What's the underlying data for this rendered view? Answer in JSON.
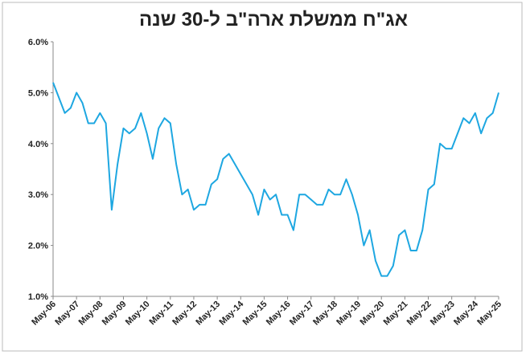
{
  "chart_data": {
    "type": "line",
    "title": "אג\"ח ממשלת ארה\"ב ל-30 שנה",
    "categories": [
      "May-06",
      null,
      null,
      null,
      "May-07",
      null,
      null,
      null,
      "May-08",
      null,
      null,
      null,
      "May-09",
      null,
      null,
      null,
      "May-10",
      null,
      null,
      null,
      "May-11",
      null,
      null,
      null,
      "May-12",
      null,
      null,
      null,
      "May-13",
      null,
      null,
      null,
      "May-14",
      null,
      null,
      null,
      "May-15",
      null,
      null,
      null,
      "May-16",
      null,
      null,
      null,
      "May-17",
      null,
      null,
      null,
      "May-18",
      null,
      null,
      null,
      "May-19",
      null,
      null,
      null,
      "May-20",
      null,
      null,
      null,
      "May-21",
      null,
      null,
      null,
      "May-22",
      null,
      null,
      null,
      "May-23",
      null,
      null,
      null,
      "May-24",
      null,
      null,
      null,
      "May-25"
    ],
    "series": [
      {
        "color": "#1ea7e1",
        "values": [
          5.2,
          4.9,
          4.6,
          4.7,
          5.0,
          4.8,
          4.4,
          4.4,
          4.6,
          4.4,
          2.7,
          3.6,
          4.3,
          4.2,
          4.3,
          4.6,
          4.2,
          3.7,
          4.3,
          4.5,
          4.4,
          3.6,
          3.0,
          3.1,
          2.7,
          2.8,
          2.8,
          3.2,
          3.3,
          3.7,
          3.8,
          3.6,
          3.4,
          3.2,
          3.0,
          2.6,
          3.1,
          2.9,
          3.0,
          2.6,
          2.6,
          2.3,
          3.0,
          3.0,
          2.9,
          2.8,
          2.8,
          3.1,
          3.0,
          3.0,
          3.3,
          3.0,
          2.6,
          2.0,
          2.3,
          1.7,
          1.4,
          1.4,
          1.6,
          2.2,
          2.3,
          1.9,
          1.9,
          2.3,
          3.1,
          3.2,
          4.0,
          3.9,
          3.9,
          4.2,
          4.5,
          4.4,
          4.6,
          4.2,
          4.5,
          4.6,
          5.0
        ]
      }
    ],
    "ylim": [
      1,
      6
    ],
    "yticks": [
      {
        "value": 1,
        "label": "1.0%"
      },
      {
        "value": 2,
        "label": "2.0%"
      },
      {
        "value": 3,
        "label": "3.0%"
      },
      {
        "value": 4,
        "label": "4.0%"
      },
      {
        "value": 5,
        "label": "5.0%"
      },
      {
        "value": 6,
        "label": "6.0%"
      }
    ]
  }
}
